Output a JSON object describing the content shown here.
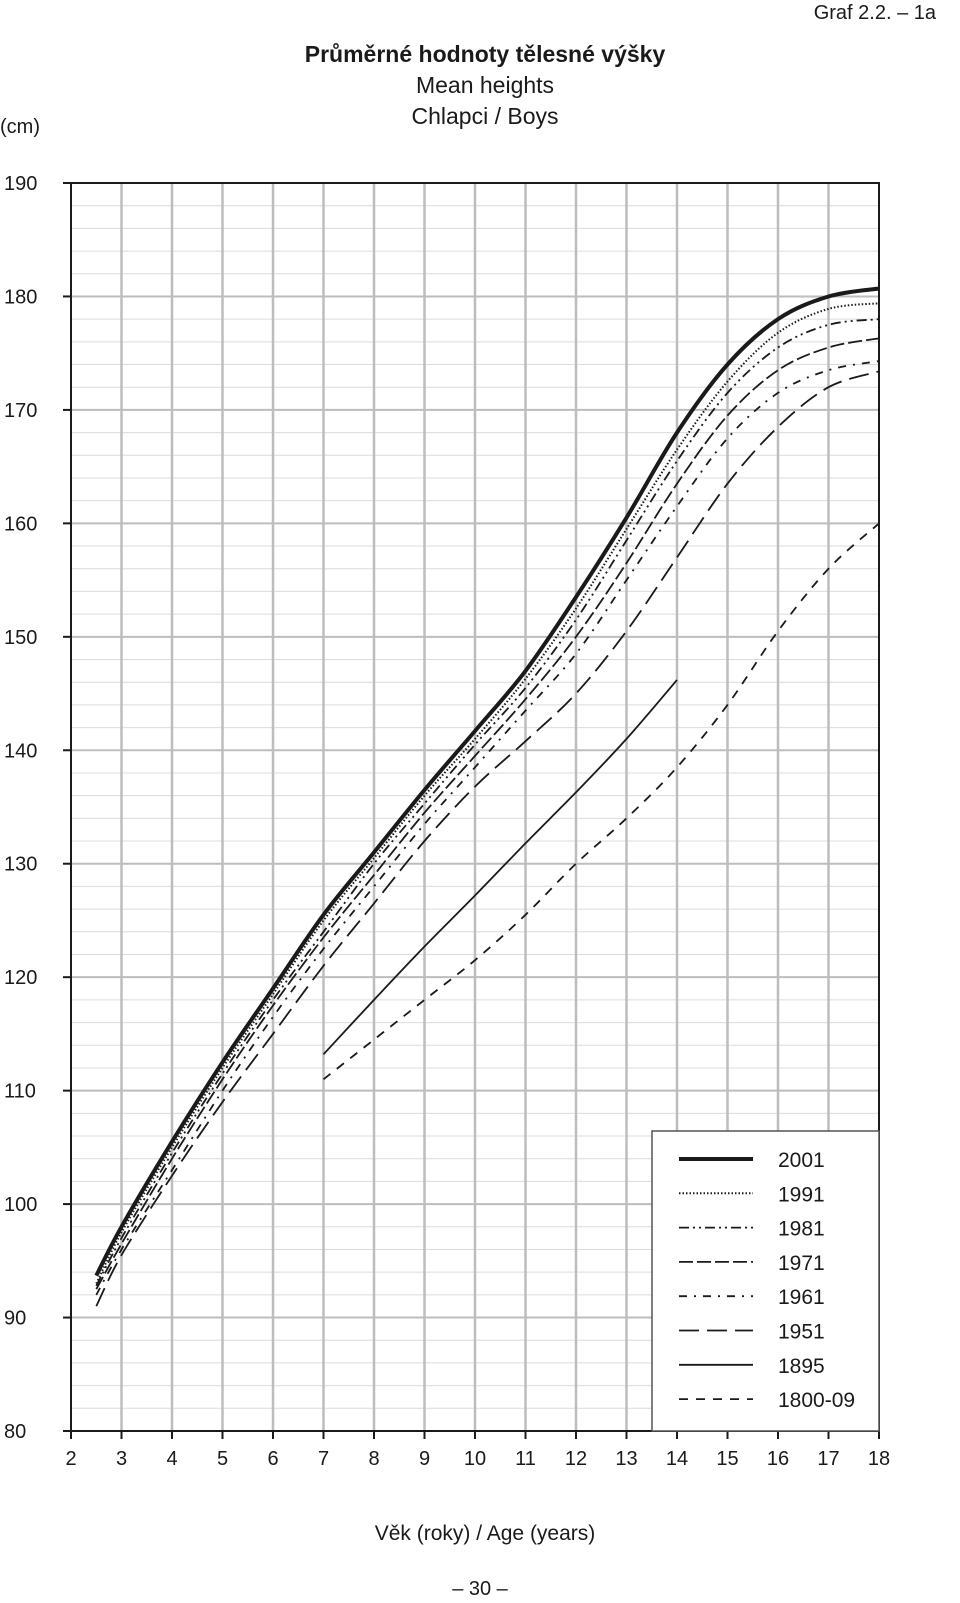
{
  "graf_id": "Graf 2.2. – 1a",
  "page_number": "– 30 –",
  "chart_data": {
    "type": "line",
    "title": "Průměrné hodnoty tělesné výšky",
    "subtitle_1": "Mean heights",
    "subtitle_2": "Chlapci / Boys",
    "xlabel": "Věk (roky) / Age (years)",
    "ylabel": "(cm)",
    "xlim": [
      2,
      18
    ],
    "ylim": [
      80,
      190
    ],
    "x_ticks": [
      2,
      3,
      4,
      5,
      6,
      7,
      8,
      9,
      10,
      11,
      12,
      13,
      14,
      15,
      16,
      17,
      18
    ],
    "y_ticks": [
      80,
      90,
      100,
      110,
      120,
      130,
      140,
      150,
      160,
      170,
      180,
      190
    ],
    "grid": true,
    "legend_position": "bottom-right",
    "series": [
      {
        "name": "2001",
        "style": "thick-solid",
        "x": [
          2.5,
          3,
          4,
          5,
          6,
          7,
          8,
          9,
          10,
          11,
          12,
          13,
          14,
          15,
          16,
          17,
          18
        ],
        "y": [
          93.7,
          98,
          105.5,
          112.5,
          119,
          125.5,
          131,
          136.5,
          141.7,
          147,
          153.5,
          160.5,
          168,
          174,
          178,
          180,
          180.7
        ]
      },
      {
        "name": "1991",
        "style": "dotted",
        "x": [
          2.5,
          3,
          4,
          5,
          6,
          7,
          8,
          9,
          10,
          11,
          12,
          13,
          14,
          15,
          16,
          17,
          18
        ],
        "y": [
          93,
          97.5,
          105,
          112,
          118.5,
          125,
          130.5,
          136,
          141,
          146.3,
          152.5,
          159.5,
          166.5,
          172.5,
          176.8,
          178.9,
          179.4
        ]
      },
      {
        "name": "1981",
        "style": "dash-dot-dot",
        "x": [
          2.5,
          3,
          4,
          5,
          6,
          7,
          8,
          9,
          10,
          11,
          12,
          13,
          14,
          15,
          16,
          17,
          18
        ],
        "y": [
          92.8,
          97,
          104.5,
          111.5,
          118,
          124,
          130,
          135.3,
          140.5,
          145.5,
          151.5,
          158.5,
          165.5,
          171.5,
          175.5,
          177.5,
          178
        ]
      },
      {
        "name": "1971",
        "style": "medium-dash",
        "x": [
          2.5,
          3,
          4,
          5,
          6,
          7,
          8,
          9,
          10,
          11,
          12,
          13,
          14,
          15,
          16,
          17,
          18
        ],
        "y": [
          92.5,
          96.5,
          104,
          111,
          117.5,
          123.5,
          129,
          134.5,
          139.5,
          144.5,
          150,
          156.5,
          163.5,
          169.5,
          173.5,
          175.5,
          176.3
        ]
      },
      {
        "name": "1961",
        "style": "dash-dot",
        "x": [
          2.5,
          3,
          4,
          5,
          6,
          7,
          8,
          9,
          10,
          11,
          12,
          13,
          14,
          15,
          16,
          17,
          18
        ],
        "y": [
          92,
          96,
          103,
          110,
          116.5,
          122.5,
          128,
          133.5,
          138.5,
          143.5,
          148.5,
          155,
          161.5,
          167.5,
          171.5,
          173.5,
          174.3
        ]
      },
      {
        "name": "1951",
        "style": "long-dash",
        "x": [
          2.5,
          3,
          4,
          5,
          6,
          7,
          8,
          9,
          10,
          11,
          12,
          13,
          14,
          15,
          16,
          17,
          18
        ],
        "y": [
          91,
          95.5,
          102.5,
          109,
          115,
          121,
          126.5,
          132,
          136.8,
          140.8,
          145,
          150.5,
          157,
          163.5,
          168.5,
          172,
          173.4
        ]
      },
      {
        "name": "1895",
        "style": "thin-solid",
        "x": [
          7,
          8,
          9,
          10,
          11,
          12,
          13,
          14
        ],
        "y": [
          113.2,
          118,
          122.7,
          127.2,
          131.8,
          136.3,
          141,
          146.2
        ]
      },
      {
        "name": "1800-09",
        "style": "short-dash",
        "x": [
          7,
          8,
          9,
          10,
          11,
          12,
          13,
          14,
          15,
          16,
          17,
          18
        ],
        "y": [
          111,
          114.5,
          118,
          121.5,
          125.5,
          130,
          134,
          138.5,
          144,
          150.5,
          156,
          160
        ]
      }
    ]
  }
}
